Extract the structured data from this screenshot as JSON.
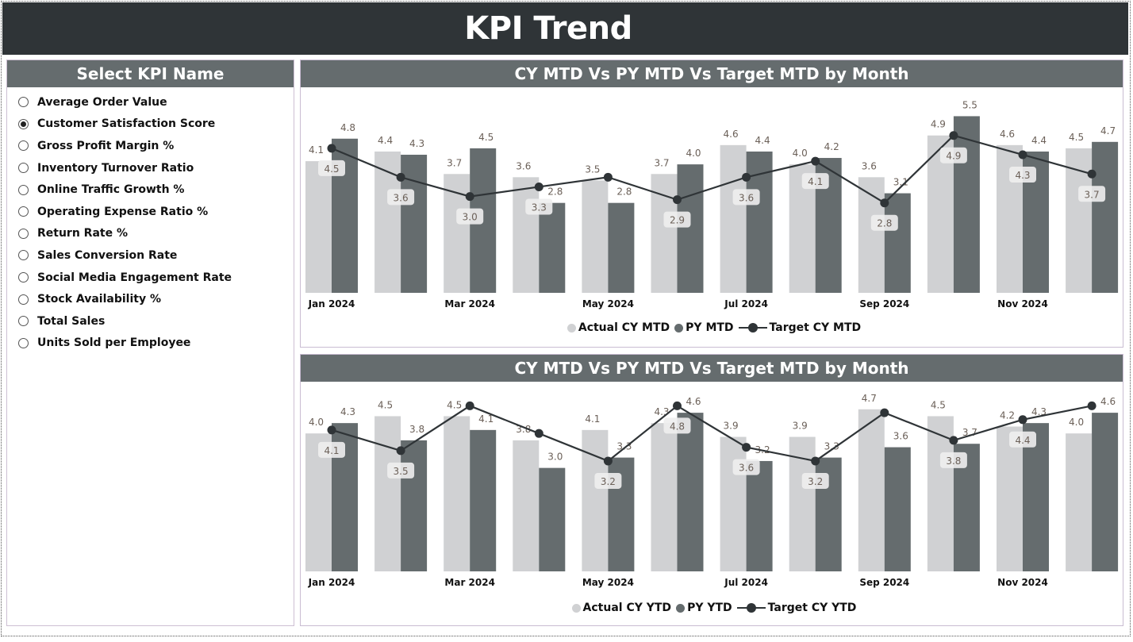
{
  "header": {
    "title": "KPI Trend"
  },
  "slicer": {
    "title": "Select KPI Name",
    "selected": "Customer Satisfaction Score",
    "items": [
      "Average Order Value",
      "Customer Satisfaction Score",
      "Gross Profit Margin %",
      "Inventory Turnover Ratio",
      "Online Traffic Growth %",
      "Operating Expense Ratio %",
      "Return Rate %",
      "Sales Conversion Rate",
      "Social Media Engagement Rate",
      "Stock Availability %",
      "Total Sales",
      "Units Sold per Employee"
    ]
  },
  "colors": {
    "actual": "#d0d1d3",
    "py": "#656c6e",
    "target": "#2f3437",
    "header": "#2f3437",
    "label": "#6b6058"
  },
  "chart_data": [
    {
      "type": "bar",
      "title": "CY MTD Vs PY MTD Vs Target MTD by Month",
      "categories": [
        "Jan 2024",
        "Feb 2024",
        "Mar 2024",
        "Apr 2024",
        "May 2024",
        "Jun 2024",
        "Jul 2024",
        "Aug 2024",
        "Sep 2024",
        "Oct 2024",
        "Nov 2024",
        "Dec 2024"
      ],
      "tick_labels": [
        "Jan 2024",
        "",
        "Mar 2024",
        "",
        "May 2024",
        "",
        "Jul 2024",
        "",
        "Sep 2024",
        "",
        "Nov 2024",
        ""
      ],
      "series": [
        {
          "name": "Actual CY MTD",
          "kind": "bar",
          "values": [
            4.1,
            4.4,
            3.7,
            3.6,
            3.5,
            3.7,
            4.6,
            4.0,
            3.6,
            4.9,
            4.6,
            4.5
          ]
        },
        {
          "name": "PY MTD",
          "kind": "bar",
          "values": [
            4.8,
            4.3,
            4.5,
            2.8,
            2.8,
            4.0,
            4.4,
            4.2,
            3.1,
            5.5,
            4.4,
            4.7
          ]
        },
        {
          "name": "Target CY MTD",
          "kind": "line",
          "values": [
            4.5,
            3.6,
            3.0,
            3.3,
            3.6,
            2.9,
            3.6,
            4.1,
            2.8,
            4.9,
            4.3,
            3.7
          ],
          "labels": [
            "4.5",
            "3.6",
            "3.0",
            "3.3",
            "",
            "2.9",
            "3.6",
            "4.1",
            "2.8",
            "4.9",
            "4.3",
            "3.7"
          ]
        }
      ],
      "ylim": [
        0,
        6.4
      ],
      "grid": false,
      "legend": "bottom"
    },
    {
      "type": "bar",
      "title": "CY MTD Vs PY MTD Vs Target MTD by Month",
      "categories": [
        "Jan 2024",
        "Feb 2024",
        "Mar 2024",
        "Apr 2024",
        "May 2024",
        "Jun 2024",
        "Jul 2024",
        "Aug 2024",
        "Sep 2024",
        "Oct 2024",
        "Nov 2024",
        "Dec 2024"
      ],
      "tick_labels": [
        "Jan 2024",
        "",
        "Mar 2024",
        "",
        "May 2024",
        "",
        "Jul 2024",
        "",
        "Sep 2024",
        "",
        "Nov 2024",
        ""
      ],
      "series": [
        {
          "name": "Actual CY YTD",
          "kind": "bar",
          "values": [
            4.0,
            4.5,
            4.5,
            3.8,
            4.1,
            4.3,
            3.9,
            3.9,
            4.7,
            4.5,
            4.2,
            4.0
          ]
        },
        {
          "name": "PY YTD",
          "kind": "bar",
          "values": [
            4.3,
            3.8,
            4.1,
            3.0,
            3.3,
            4.6,
            3.2,
            3.3,
            3.6,
            3.7,
            4.3,
            4.6
          ]
        },
        {
          "name": "Target CY YTD",
          "kind": "line",
          "values": [
            4.1,
            3.5,
            4.8,
            4.0,
            3.2,
            4.8,
            3.6,
            3.2,
            4.6,
            3.8,
            4.4,
            4.8
          ],
          "labels": [
            "4.1",
            "3.5",
            "",
            "",
            "3.2",
            "4.8",
            "3.6",
            "3.2",
            "",
            "3.8",
            "4.4",
            ""
          ]
        }
      ],
      "ylim": [
        0,
        5.5
      ],
      "grid": false,
      "legend": "bottom"
    }
  ]
}
